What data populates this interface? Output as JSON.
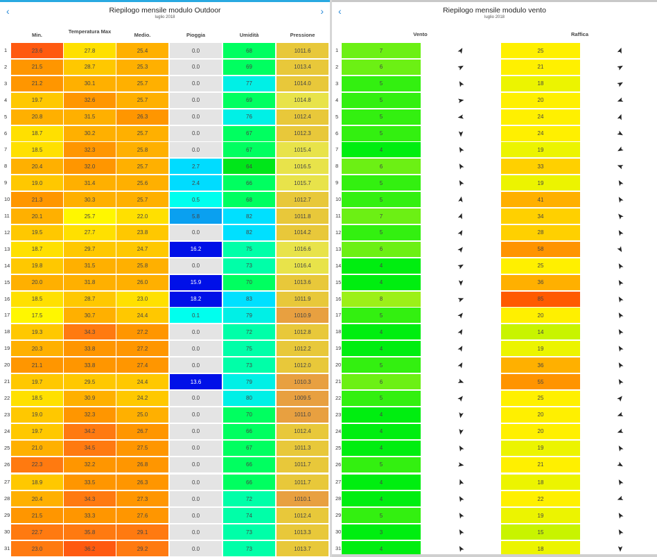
{
  "left": {
    "title": "Riepilogo mensile modulo Outdoor",
    "subtitle": "luglio 2018",
    "prev_icon": "chevron-left-icon",
    "next_icon": "chevron-right-icon",
    "prev_glyph": "‹",
    "next_glyph": "›",
    "columns": [
      "Min.",
      "Temperatura Max",
      "Medio.",
      "Pioggia",
      "Umidità",
      "Pressione"
    ],
    "rows": [
      [
        "23.6",
        "27.8",
        "25.4",
        "0.0",
        "68",
        "1011.6"
      ],
      [
        "21.5",
        "28.7",
        "25.3",
        "0.0",
        "69",
        "1013.4"
      ],
      [
        "21.2",
        "30.1",
        "25.7",
        "0.0",
        "77",
        "1014.0"
      ],
      [
        "19.7",
        "32.6",
        "25.7",
        "0.0",
        "69",
        "1014.8"
      ],
      [
        "20.8",
        "31.5",
        "26.3",
        "0.0",
        "76",
        "1012.4"
      ],
      [
        "18.7",
        "30.2",
        "25.7",
        "0.0",
        "67",
        "1012.3"
      ],
      [
        "18.5",
        "32.3",
        "25.8",
        "0.0",
        "67",
        "1015.4"
      ],
      [
        "20.4",
        "32.0",
        "25.7",
        "2.7",
        "64",
        "1016.5"
      ],
      [
        "19.0",
        "31.4",
        "25.6",
        "2.4",
        "66",
        "1015.7"
      ],
      [
        "21.3",
        "30.3",
        "25.7",
        "0.5",
        "68",
        "1012.7"
      ],
      [
        "20.1",
        "25.7",
        "22.0",
        "5.8",
        "82",
        "1011.8"
      ],
      [
        "19.5",
        "27.7",
        "23.8",
        "0.0",
        "82",
        "1014.2"
      ],
      [
        "18.7",
        "29.7",
        "24.7",
        "16.2",
        "75",
        "1016.6"
      ],
      [
        "19.8",
        "31.5",
        "25.8",
        "0.0",
        "73",
        "1016.4"
      ],
      [
        "20.0",
        "31.8",
        "26.0",
        "15.9",
        "70",
        "1013.6"
      ],
      [
        "18.5",
        "28.7",
        "23.0",
        "18.2",
        "83",
        "1011.9"
      ],
      [
        "17.5",
        "30.7",
        "24.4",
        "0.1",
        "79",
        "1010.9"
      ],
      [
        "19.3",
        "34.3",
        "27.2",
        "0.0",
        "72",
        "1012.8"
      ],
      [
        "20.3",
        "33.8",
        "27.2",
        "0.0",
        "75",
        "1012.2"
      ],
      [
        "21.1",
        "33.8",
        "27.4",
        "0.0",
        "73",
        "1012.0"
      ],
      [
        "19.7",
        "29.5",
        "24.4",
        "13.6",
        "79",
        "1010.3"
      ],
      [
        "18.5",
        "30.9",
        "24.2",
        "0.0",
        "80",
        "1009.5"
      ],
      [
        "19.0",
        "32.3",
        "25.0",
        "0.0",
        "70",
        "1011.0"
      ],
      [
        "19.7",
        "34.2",
        "26.7",
        "0.0",
        "66",
        "1012.4"
      ],
      [
        "21.0",
        "34.5",
        "27.5",
        "0.0",
        "67",
        "1011.3"
      ],
      [
        "22.3",
        "32.2",
        "26.8",
        "0.0",
        "66",
        "1011.7"
      ],
      [
        "18.9",
        "33.5",
        "26.3",
        "0.0",
        "66",
        "1011.7"
      ],
      [
        "20.4",
        "34.3",
        "27.3",
        "0.0",
        "72",
        "1010.1"
      ],
      [
        "21.5",
        "33.3",
        "27.6",
        "0.0",
        "74",
        "1012.4"
      ],
      [
        "22.7",
        "35.8",
        "29.1",
        "0.0",
        "73",
        "1013.3"
      ],
      [
        "23.0",
        "36.2",
        "29.2",
        "0.0",
        "73",
        "1013.7"
      ]
    ]
  },
  "right": {
    "title": "Riepilogo mensile modulo vento",
    "subtitle": "luglio 2018",
    "prev_icon": "chevron-left-icon",
    "prev_glyph": "‹",
    "columns": [
      "Vento",
      "Raffica"
    ],
    "rows": [
      {
        "wind": "7",
        "wind_dir": 30,
        "gust": "25",
        "gust_dir": 20
      },
      {
        "wind": "6",
        "wind_dir": 60,
        "gust": "21",
        "gust_dir": 60
      },
      {
        "wind": "5",
        "wind_dir": -30,
        "gust": "18",
        "gust_dir": 60
      },
      {
        "wind": "5",
        "wind_dir": 80,
        "gust": "20",
        "gust_dir": -110
      },
      {
        "wind": "5",
        "wind_dir": -100,
        "gust": "24",
        "gust_dir": 20
      },
      {
        "wind": "5",
        "wind_dir": 180,
        "gust": "24",
        "gust_dir": 120
      },
      {
        "wind": "4",
        "wind_dir": -30,
        "gust": "19",
        "gust_dir": -120
      },
      {
        "wind": "6",
        "wind_dir": -30,
        "gust": "33",
        "gust_dir": -70
      },
      {
        "wind": "5",
        "wind_dir": -30,
        "gust": "19",
        "gust_dir": -30
      },
      {
        "wind": "5",
        "wind_dir": 10,
        "gust": "41",
        "gust_dir": -30
      },
      {
        "wind": "7",
        "wind_dir": 20,
        "gust": "34",
        "gust_dir": -40
      },
      {
        "wind": "5",
        "wind_dir": 30,
        "gust": "28",
        "gust_dir": -30
      },
      {
        "wind": "6",
        "wind_dir": 40,
        "gust": "58",
        "gust_dir": 150
      },
      {
        "wind": "4",
        "wind_dir": 60,
        "gust": "25",
        "gust_dir": -30
      },
      {
        "wind": "4",
        "wind_dir": 180,
        "gust": "36",
        "gust_dir": -30
      },
      {
        "wind": "8",
        "wind_dir": 70,
        "gust": "85",
        "gust_dir": -30
      },
      {
        "wind": "5",
        "wind_dir": 40,
        "gust": "20",
        "gust_dir": -30
      },
      {
        "wind": "4",
        "wind_dir": 30,
        "gust": "14",
        "gust_dir": -30
      },
      {
        "wind": "4",
        "wind_dir": 30,
        "gust": "19",
        "gust_dir": -30
      },
      {
        "wind": "5",
        "wind_dir": 30,
        "gust": "36",
        "gust_dir": -30
      },
      {
        "wind": "6",
        "wind_dir": 110,
        "gust": "55",
        "gust_dir": -30
      },
      {
        "wind": "5",
        "wind_dir": 40,
        "gust": "25",
        "gust_dir": 40
      },
      {
        "wind": "4",
        "wind_dir": -170,
        "gust": "20",
        "gust_dir": -110
      },
      {
        "wind": "4",
        "wind_dir": -170,
        "gust": "20",
        "gust_dir": -110
      },
      {
        "wind": "4",
        "wind_dir": -30,
        "gust": "19",
        "gust_dir": -30
      },
      {
        "wind": "5",
        "wind_dir": 100,
        "gust": "21",
        "gust_dir": 120
      },
      {
        "wind": "4",
        "wind_dir": -20,
        "gust": "18",
        "gust_dir": -30
      },
      {
        "wind": "4",
        "wind_dir": -30,
        "gust": "22",
        "gust_dir": -110
      },
      {
        "wind": "5",
        "wind_dir": -30,
        "gust": "19",
        "gust_dir": -30
      },
      {
        "wind": "3",
        "wind_dir": -30,
        "gust": "15",
        "gust_dir": -30
      },
      {
        "wind": "4",
        "wind_dir": -30,
        "gust": "18",
        "gust_dir": 180
      }
    ]
  },
  "colors": {
    "accent": "#29a9e1",
    "temp_scale": [
      "#fff700",
      "#ffe000",
      "#ffc800",
      "#ffb000",
      "#ff9600",
      "#ff7a10",
      "#ff5a10"
    ],
    "rain_zero": "#e4e4e4",
    "humidity_scale": [
      "#00e61a",
      "#00ff60",
      "#00ffa8",
      "#00f0e6",
      "#00e0ff"
    ],
    "pressure_scale": [
      "#e8e34a",
      "#e8c83a",
      "#e8a040"
    ],
    "wind_scale": [
      "#00ee10",
      "#33f010",
      "#6cf014",
      "#9cf018"
    ],
    "gust_scale": [
      "#c8f400",
      "#ecf400",
      "#fff000",
      "#ffd000",
      "#ffb000",
      "#ff9400",
      "#ff5a00"
    ]
  }
}
